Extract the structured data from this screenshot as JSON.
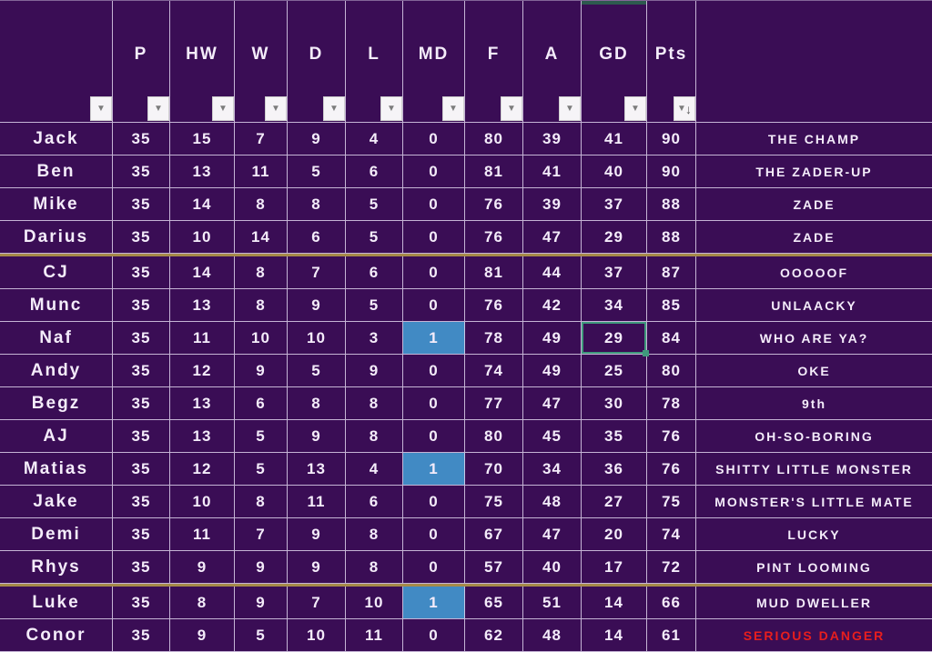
{
  "theme": {
    "background_purple": "#3a0d55",
    "gridline": "#ded2ec",
    "text": "#f4ecfa",
    "separator_gold": "#a78a49",
    "highlight_blue": "#418ac4",
    "selection_green": "#3f997c",
    "danger_red": "#e81e1e",
    "column_mark_teal": "#2d5a4e"
  },
  "icons": {
    "filter_dropdown": "▼",
    "sort_descending": "↓"
  },
  "table": {
    "column_headers": [
      "P",
      "HW",
      "W",
      "D",
      "L",
      "MD",
      "F",
      "A",
      "GD",
      "Pts"
    ],
    "sorted_column": "Pts",
    "marked_column": "GD",
    "selected_cell": {
      "row": "Naf",
      "column": "GD",
      "value": "29"
    },
    "rows": [
      {
        "name": "Jack",
        "values": [
          "35",
          "15",
          "7",
          "9",
          "4",
          "0",
          "80",
          "39",
          "41",
          "90"
        ],
        "comment": "THE CHAMP"
      },
      {
        "name": "Ben",
        "values": [
          "35",
          "13",
          "11",
          "5",
          "6",
          "0",
          "81",
          "41",
          "40",
          "90"
        ],
        "comment": "THE ZADER-UP"
      },
      {
        "name": "Mike",
        "values": [
          "35",
          "14",
          "8",
          "8",
          "5",
          "0",
          "76",
          "39",
          "37",
          "88"
        ],
        "comment": "ZADE"
      },
      {
        "name": "Darius",
        "values": [
          "35",
          "10",
          "14",
          "6",
          "5",
          "0",
          "76",
          "47",
          "29",
          "88"
        ],
        "comment": "ZADE",
        "separator_after": true
      },
      {
        "name": "CJ",
        "values": [
          "35",
          "14",
          "8",
          "7",
          "6",
          "0",
          "81",
          "44",
          "37",
          "87"
        ],
        "comment": "OOOOOF"
      },
      {
        "name": "Munc",
        "values": [
          "35",
          "13",
          "8",
          "9",
          "5",
          "0",
          "76",
          "42",
          "34",
          "85"
        ],
        "comment": "UNLAACKY"
      },
      {
        "name": "Naf",
        "values": [
          "35",
          "11",
          "10",
          "10",
          "3",
          "1",
          "78",
          "49",
          "29",
          "84"
        ],
        "comment": "WHO ARE YA?",
        "md_highlight": true,
        "selected_col": 8
      },
      {
        "name": "Andy",
        "values": [
          "35",
          "12",
          "9",
          "5",
          "9",
          "0",
          "74",
          "49",
          "25",
          "80"
        ],
        "comment": "OKE"
      },
      {
        "name": "Begz",
        "values": [
          "35",
          "13",
          "6",
          "8",
          "8",
          "0",
          "77",
          "47",
          "30",
          "78"
        ],
        "comment": "9th"
      },
      {
        "name": "AJ",
        "values": [
          "35",
          "13",
          "5",
          "9",
          "8",
          "0",
          "80",
          "45",
          "35",
          "76"
        ],
        "comment": "OH-SO-BORING"
      },
      {
        "name": "Matias",
        "values": [
          "35",
          "12",
          "5",
          "13",
          "4",
          "1",
          "70",
          "34",
          "36",
          "76"
        ],
        "comment": "SHITTY LITTLE MONSTER",
        "md_highlight": true
      },
      {
        "name": "Jake",
        "values": [
          "35",
          "10",
          "8",
          "11",
          "6",
          "0",
          "75",
          "48",
          "27",
          "75"
        ],
        "comment": "MONSTER'S LITTLE MATE"
      },
      {
        "name": "Demi",
        "values": [
          "35",
          "11",
          "7",
          "9",
          "8",
          "0",
          "67",
          "47",
          "20",
          "74"
        ],
        "comment": "LUCKY"
      },
      {
        "name": "Rhys",
        "values": [
          "35",
          "9",
          "9",
          "9",
          "8",
          "0",
          "57",
          "40",
          "17",
          "72"
        ],
        "comment": "PINT LOOMING",
        "separator_after": true
      },
      {
        "name": "Luke",
        "values": [
          "35",
          "8",
          "9",
          "7",
          "10",
          "1",
          "65",
          "51",
          "14",
          "66"
        ],
        "comment": "MUD DWELLER",
        "md_highlight": true
      },
      {
        "name": "Conor",
        "values": [
          "35",
          "9",
          "5",
          "10",
          "11",
          "0",
          "62",
          "48",
          "14",
          "61"
        ],
        "comment": "SERIOUS DANGER",
        "comment_danger": true
      }
    ]
  }
}
